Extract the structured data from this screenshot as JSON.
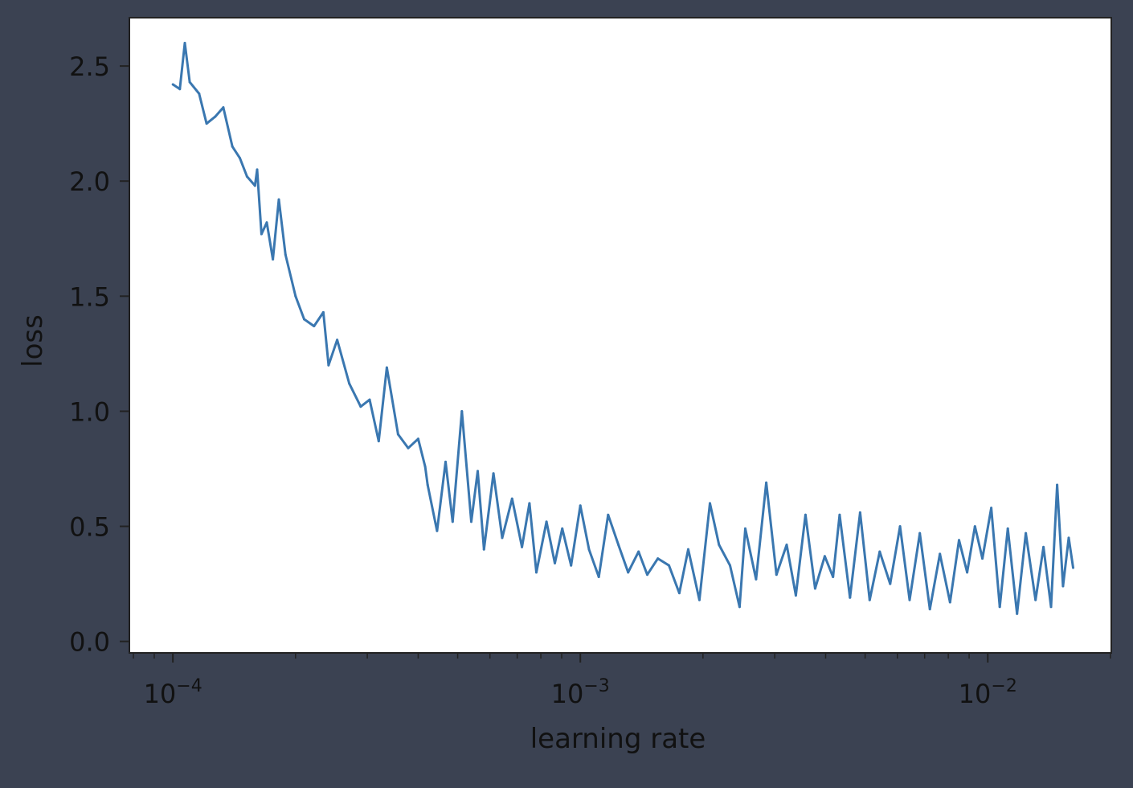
{
  "chart_data": {
    "type": "line",
    "title": "",
    "xlabel": "learning rate",
    "ylabel": "loss",
    "x_scale": "log",
    "xlim": [
      7.82e-05,
      0.0201
    ],
    "ylim": [
      -0.05,
      2.71
    ],
    "x_ticks": [
      {
        "value": 0.0001,
        "base": "10",
        "exponent": "−4"
      },
      {
        "value": 0.001,
        "base": "10",
        "exponent": "−3"
      },
      {
        "value": 0.01,
        "base": "10",
        "exponent": "−2"
      }
    ],
    "y_ticks": [
      {
        "value": 0.0,
        "label": "0.0"
      },
      {
        "value": 0.5,
        "label": "0.5"
      },
      {
        "value": 1.0,
        "label": "1.0"
      },
      {
        "value": 1.5,
        "label": "1.5"
      },
      {
        "value": 2.0,
        "label": "2.0"
      },
      {
        "value": 2.5,
        "label": "2.5"
      }
    ],
    "grid": false,
    "legend": "none",
    "colors": {
      "page_background": "#3b4252",
      "plot_background": "#ffffff",
      "series_line": "#3a77b0",
      "axes_text": "#111111"
    },
    "series": [
      {
        "x": [
          0.0001,
          0.000104,
          0.000107,
          0.00011,
          0.000116,
          0.000121,
          0.000127,
          0.000133,
          0.00014,
          0.000146,
          0.000152,
          0.000159,
          0.000161,
          0.000165,
          0.00017,
          0.000176,
          0.000182,
          0.000189,
          0.0002,
          0.00021,
          0.000222,
          0.000234,
          0.000241,
          0.000253,
          0.000271,
          0.000289,
          0.000304,
          0.00032,
          0.000335,
          0.000357,
          0.000378,
          0.0004,
          0.000416,
          0.000422,
          0.000445,
          0.000467,
          0.000486,
          0.000512,
          0.00054,
          0.00056,
          0.00058,
          0.000612,
          0.000643,
          0.00068,
          0.000719,
          0.00075,
          0.00078,
          0.000826,
          0.000866,
          0.000903,
          0.000949,
          0.001,
          0.00105,
          0.00111,
          0.00117,
          0.00124,
          0.00131,
          0.00139,
          0.00146,
          0.00155,
          0.00165,
          0.00175,
          0.00184,
          0.00196,
          0.00208,
          0.00219,
          0.00233,
          0.00246,
          0.00254,
          0.0027,
          0.00286,
          0.00303,
          0.00321,
          0.00338,
          0.00357,
          0.00377,
          0.00398,
          0.00417,
          0.00433,
          0.00459,
          0.00486,
          0.00513,
          0.00543,
          0.00576,
          0.00609,
          0.00643,
          0.00681,
          0.00721,
          0.00763,
          0.00808,
          0.0085,
          0.0089,
          0.0093,
          0.0097,
          0.0102,
          0.0107,
          0.0112,
          0.0118,
          0.0124,
          0.0131,
          0.0137,
          0.0143,
          0.0148,
          0.0153,
          0.0158,
          0.0162
        ],
        "y": [
          2.42,
          2.4,
          2.6,
          2.43,
          2.38,
          2.25,
          2.28,
          2.32,
          2.15,
          2.1,
          2.02,
          1.98,
          2.05,
          1.77,
          1.82,
          1.66,
          1.92,
          1.68,
          1.5,
          1.4,
          1.37,
          1.43,
          1.2,
          1.31,
          1.12,
          1.02,
          1.05,
          0.87,
          1.19,
          0.9,
          0.84,
          0.88,
          0.76,
          0.68,
          0.48,
          0.78,
          0.52,
          1.0,
          0.52,
          0.74,
          0.4,
          0.73,
          0.45,
          0.62,
          0.41,
          0.6,
          0.3,
          0.52,
          0.34,
          0.49,
          0.33,
          0.59,
          0.4,
          0.28,
          0.55,
          0.42,
          0.3,
          0.39,
          0.29,
          0.36,
          0.33,
          0.21,
          0.4,
          0.18,
          0.6,
          0.42,
          0.33,
          0.15,
          0.49,
          0.27,
          0.69,
          0.29,
          0.42,
          0.2,
          0.55,
          0.23,
          0.37,
          0.28,
          0.55,
          0.19,
          0.56,
          0.18,
          0.39,
          0.25,
          0.5,
          0.18,
          0.47,
          0.14,
          0.38,
          0.17,
          0.44,
          0.3,
          0.5,
          0.36,
          0.58,
          0.15,
          0.49,
          0.12,
          0.47,
          0.18,
          0.41,
          0.15,
          0.68,
          0.24,
          0.45,
          0.32
        ]
      }
    ]
  }
}
